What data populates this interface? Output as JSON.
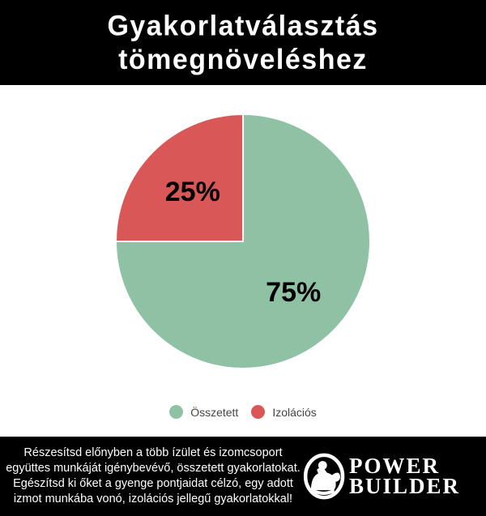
{
  "header": {
    "title": "Gyakorlatválasztás\ntömegnöveléshez"
  },
  "chart_data": {
    "type": "pie",
    "title": "Gyakorlatválasztás tömegnöveléshez",
    "labels": [
      "Összetett",
      "Izolációs"
    ],
    "values": [
      75,
      25
    ],
    "value_labels": [
      "75%",
      "25%"
    ],
    "colors": [
      "#8FC2A5",
      "#D95756"
    ],
    "start_angle_deg": -90,
    "direction": "clockwise",
    "legend_position": "bottom",
    "slice_border_color": "#ffffff",
    "label_color": "#000000"
  },
  "footer": {
    "text": "Részesítsd előnyben a több ízület és izomcsoport együttes munkáját igénybevévő, összetett gyakorlatokat. Egészítsd ki őket a gyenge pontjaidat célzó, egy adott izmot munkába vonó, izolációs jellegű gyakorlatokkal!",
    "logo": {
      "line1": "POWER",
      "line2": "BUILDER"
    }
  },
  "colors": {
    "bar_background": "#000000",
    "page_background": "#ffffff",
    "legend_text": "#444444"
  }
}
